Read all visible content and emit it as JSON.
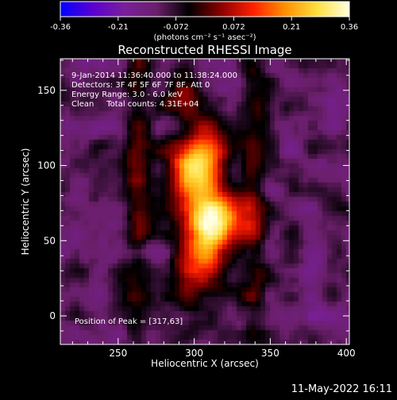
{
  "chart_data": {
    "type": "heatmap",
    "title": "Reconstructed RHESSI Image",
    "xlabel": "Heliocentric X (arcsec)",
    "ylabel": "Heliocentric Y (arcsec)",
    "xlim": [
      212,
      402
    ],
    "ylim": [
      -19,
      171
    ],
    "xticks": [
      250,
      300,
      350,
      400
    ],
    "yticks": [
      0,
      50,
      100,
      150
    ],
    "grid": false,
    "info_lines": [
      "9-Jan-2014 11:36:40.000 to 11:38:24.000",
      "Detectors: 3F 4F 5F 6F 7F 8F, Att 0",
      "Energy Range: 3.0 - 6.0 keV",
      "Clean     Total counts: 4.31E+04"
    ],
    "peak_label": "Position of Peak = [317,63]",
    "peak": [
      317,
      63
    ],
    "colorbar": {
      "min": -0.36,
      "max": 0.36,
      "ticks": [
        "-0.36",
        "-0.21",
        "-0.072",
        "0.072",
        "0.21",
        "0.36"
      ],
      "unit_label": "(photons cm⁻² s⁻¹ asec⁻²)",
      "palette": [
        "#0000ff",
        "#5a00d2",
        "#7a1f9a",
        "#6a1f6a",
        "#000000",
        "#8a0000",
        "#ff2000",
        "#ff9000",
        "#ffe040",
        "#ffffe0"
      ]
    },
    "sources": [
      {
        "x": 300,
        "y": 100,
        "sigma_x": 13,
        "sigma_y": 13,
        "value": 0.3
      },
      {
        "x": 317,
        "y": 63,
        "sigma_x": 13,
        "sigma_y": 13,
        "value": 0.36
      },
      {
        "x": 290,
        "y": 145,
        "sigma_x": 9,
        "sigma_y": 11,
        "value": 0.16
      },
      {
        "x": 305,
        "y": 30,
        "sigma_x": 14,
        "sigma_y": 12,
        "value": 0.2
      }
    ],
    "background_value": -0.12
  },
  "footer": {
    "timestamp": "11-May-2022 16:11"
  }
}
